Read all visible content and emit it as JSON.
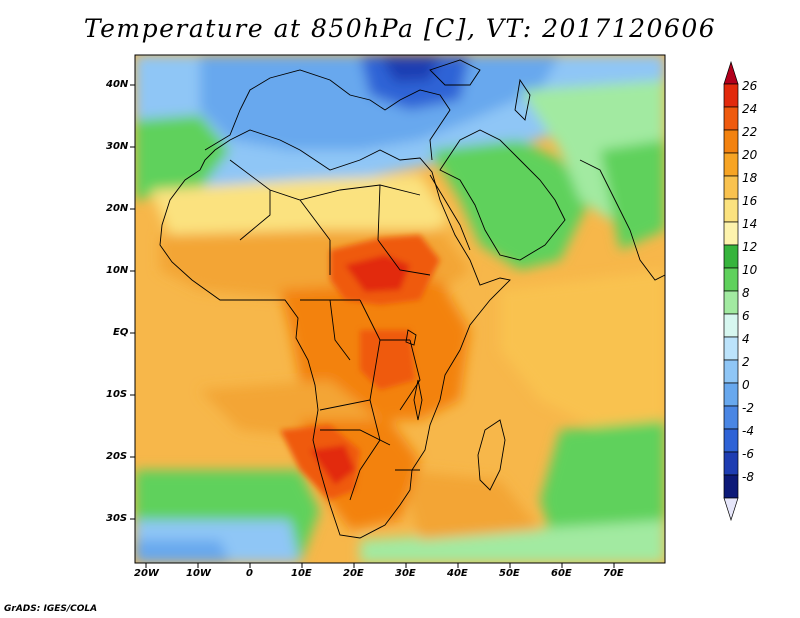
{
  "title": "Temperature at 850hPa [C], VT: 2017120606",
  "footer": "GrADS: IGES/COLA",
  "map": {
    "variable": "Temperature at 850hPa",
    "units": "C",
    "valid_time": "2017120606",
    "lon_range": [
      -23,
      80
    ],
    "lat_range": [
      -38,
      45
    ],
    "lat_ticks": [
      "40N",
      "30N",
      "20N",
      "10N",
      "EQ",
      "10S",
      "20S",
      "30S"
    ],
    "lon_ticks": [
      "20W",
      "10W",
      "0",
      "10E",
      "20E",
      "30E",
      "40E",
      "50E",
      "60E",
      "70E"
    ]
  },
  "colorbar": {
    "labels": [
      "26",
      "24",
      "22",
      "20",
      "18",
      "16",
      "14",
      "12",
      "10",
      "8",
      "6",
      "4",
      "2",
      "0",
      "-2",
      "-4",
      "-6",
      "-8"
    ],
    "colors": [
      "#b2001c",
      "#e22a0c",
      "#ef5a0e",
      "#f3820f",
      "#f7a424",
      "#f9c24f",
      "#fbe27f",
      "#fdf3ad",
      "#36b43c",
      "#5fd15c",
      "#a2eaa1",
      "#d7f7f0",
      "#bce3fb",
      "#8fc6f6",
      "#68a8ee",
      "#4a86e4",
      "#2f63d6",
      "#1e3db2",
      "#0d1a78",
      "#e6e6fa"
    ],
    "colors_note": ""
  },
  "palette": {
    "hot": "#ef5a0e",
    "warm": "#f3a536",
    "mild": "#fbe27f",
    "green": "#5fd15c",
    "cool": "#8fc6f6",
    "cold": "#2f63d6"
  }
}
